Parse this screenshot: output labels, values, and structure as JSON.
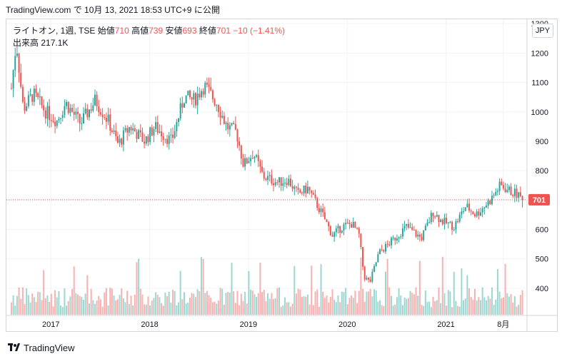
{
  "header": {
    "credit": "TradingView.com で 10月 13, 2021 18:53 UTC+9 に公開"
  },
  "legend": {
    "symbol": "ライトオン, 1週, TSE",
    "open_label": "始値",
    "open": "710",
    "high_label": "高値",
    "high": "739",
    "low_label": "安値",
    "low": "693",
    "close_label": "終値",
    "close": "701",
    "change": "−10 (−1.41%)",
    "volume_label": "出来高",
    "volume": "217.1K"
  },
  "currency": "JPY",
  "footer": {
    "brand": "TradingView"
  },
  "colors": {
    "up": "#26a69a",
    "down": "#ef5350",
    "grid": "#f0f3fa",
    "price_line": "#ef5350"
  },
  "chart_data": {
    "type": "candlestick",
    "x_axis_labels": [
      "2017",
      "2018",
      "2019",
      "2020",
      "2021",
      "8月"
    ],
    "y_ticks": [
      400,
      500,
      600,
      700,
      800,
      900,
      1000,
      1100,
      1200,
      1300
    ],
    "ylim": [
      310,
      1315
    ],
    "last_price": 701,
    "last_price_label": "701",
    "volume_max_k": 600,
    "anchors": [
      {
        "t": 2016.6,
        "p": 1080
      },
      {
        "t": 2016.65,
        "p": 1240
      },
      {
        "t": 2016.72,
        "p": 1010
      },
      {
        "t": 2016.82,
        "p": 1060
      },
      {
        "t": 2016.95,
        "p": 1000
      },
      {
        "t": 2017.06,
        "p": 970
      },
      {
        "t": 2017.15,
        "p": 1030
      },
      {
        "t": 2017.3,
        "p": 960
      },
      {
        "t": 2017.45,
        "p": 1040
      },
      {
        "t": 2017.58,
        "p": 970
      },
      {
        "t": 2017.68,
        "p": 890
      },
      {
        "t": 2017.8,
        "p": 950
      },
      {
        "t": 2017.95,
        "p": 900
      },
      {
        "t": 2018.05,
        "p": 950
      },
      {
        "t": 2018.22,
        "p": 900
      },
      {
        "t": 2018.35,
        "p": 1050
      },
      {
        "t": 2018.45,
        "p": 1040
      },
      {
        "t": 2018.55,
        "p": 1090
      },
      {
        "t": 2018.68,
        "p": 1030
      },
      {
        "t": 2018.78,
        "p": 950
      },
      {
        "t": 2018.88,
        "p": 930
      },
      {
        "t": 2018.95,
        "p": 820
      },
      {
        "t": 2019.05,
        "p": 860
      },
      {
        "t": 2019.15,
        "p": 780
      },
      {
        "t": 2019.3,
        "p": 760
      },
      {
        "t": 2019.4,
        "p": 770
      },
      {
        "t": 2019.5,
        "p": 720
      },
      {
        "t": 2019.6,
        "p": 740
      },
      {
        "t": 2019.75,
        "p": 650
      },
      {
        "t": 2019.85,
        "p": 580
      },
      {
        "t": 2019.95,
        "p": 610
      },
      {
        "t": 2020.05,
        "p": 620
      },
      {
        "t": 2020.12,
        "p": 580
      },
      {
        "t": 2020.17,
        "p": 440
      },
      {
        "t": 2020.23,
        "p": 420
      },
      {
        "t": 2020.32,
        "p": 520
      },
      {
        "t": 2020.45,
        "p": 560
      },
      {
        "t": 2020.6,
        "p": 610
      },
      {
        "t": 2020.75,
        "p": 570
      },
      {
        "t": 2020.87,
        "p": 660
      },
      {
        "t": 2020.95,
        "p": 630
      },
      {
        "t": 2021.08,
        "p": 610
      },
      {
        "t": 2021.2,
        "p": 680
      },
      {
        "t": 2021.3,
        "p": 650
      },
      {
        "t": 2021.45,
        "p": 700
      },
      {
        "t": 2021.55,
        "p": 750
      },
      {
        "t": 2021.65,
        "p": 730
      },
      {
        "t": 2021.72,
        "p": 720
      },
      {
        "t": 2021.78,
        "p": 701
      }
    ]
  }
}
